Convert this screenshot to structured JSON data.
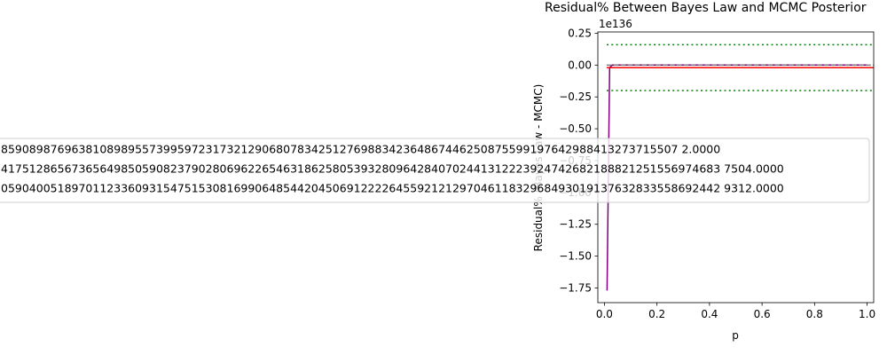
{
  "chart_data": {
    "type": "line",
    "title": "Residual% Between Bayes Law and MCMC Posterior",
    "xlabel": "p",
    "ylabel": "Residual% (Bayes Law - MCMC)",
    "offset_text": "1e136",
    "xlim": [
      -0.025,
      1.025
    ],
    "ylim": [
      -1.865,
      0.26
    ],
    "xticks": [
      0.0,
      0.2,
      0.4,
      0.6,
      0.8,
      1.0
    ],
    "xtick_labels": [
      "0.0",
      "0.2",
      "0.4",
      "0.6",
      "0.8",
      "1.0"
    ],
    "yticks": [
      0.25,
      0.0,
      -0.25,
      -0.5,
      -0.75,
      -1.0,
      -1.25,
      -1.5,
      -1.75
    ],
    "ytick_labels": [
      "0.25",
      "0.00",
      "−0.25",
      "−0.50",
      "−0.75",
      "−1.00",
      "−1.25",
      "−1.50",
      "−1.75"
    ],
    "grid": false,
    "series": [
      {
        "kind": "line",
        "color": "#800080",
        "x": [
          0.01,
          0.02,
          0.03,
          0.05,
          0.1,
          0.2,
          0.3,
          0.4,
          0.5,
          0.6,
          0.7,
          0.8,
          0.9,
          1.0
        ],
        "y": [
          -1.77,
          -0.02,
          0,
          0,
          0,
          0,
          0,
          0,
          0,
          0,
          0,
          0,
          0,
          0
        ]
      },
      {
        "kind": "hline",
        "color": "#808080",
        "style": "dashed",
        "y": 0.0
      },
      {
        "kind": "hline",
        "color": "#ff0000",
        "style": "solid",
        "y": -0.02
      },
      {
        "kind": "hline",
        "color": "#008000",
        "style": "dotted",
        "y": 0.16
      },
      {
        "kind": "hline",
        "color": "#008000",
        "style": "dotted",
        "y": -0.2
      }
    ],
    "legend_entries": [
      "859089876963810898955739959723173212906807834251276988342364867446250875599197642988413273715507 2.0000",
      "417512865673656498505908237902806962265463186258053932809642840702441312223924742682188821251556974683 7504.0000",
      "059040051897011233609315475153081699064854420450691222264559212129704611832968493019137632833558692442 9312.0000"
    ],
    "legend_colors": [
      "#ff0000",
      "#008000",
      "#008000"
    ],
    "legend_styles": [
      "solid",
      "dotted",
      "dotted"
    ]
  }
}
